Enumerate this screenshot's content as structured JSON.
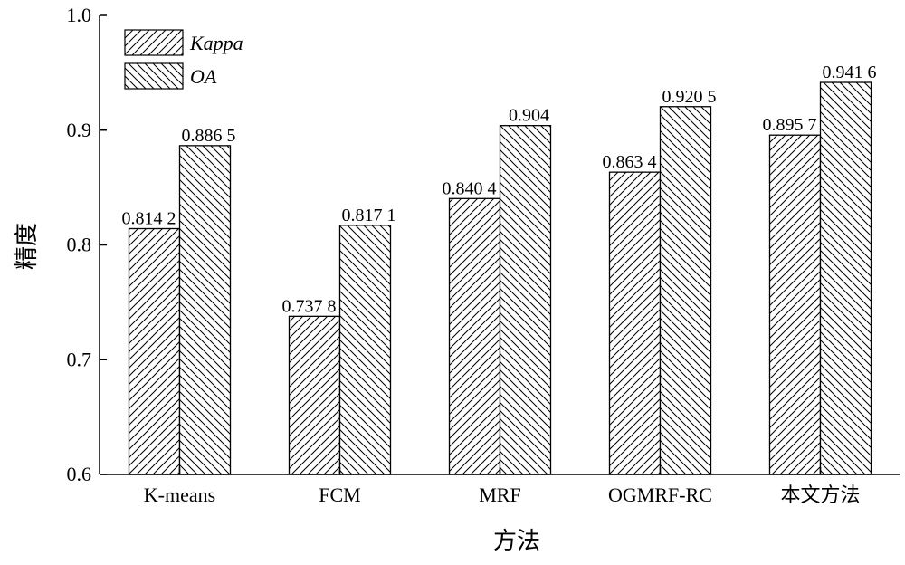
{
  "chart_data": {
    "type": "bar",
    "categories": [
      "K-means",
      "FCM",
      "MRF",
      "OGMRF-RC",
      "本文方法"
    ],
    "series": [
      {
        "name": "Kappa",
        "values": [
          0.8142,
          0.7378,
          0.8404,
          0.8634,
          0.8957
        ],
        "labels": [
          "0.814 2",
          "0.737 8",
          "0.840 4",
          "0.863 4",
          "0.895 7"
        ],
        "pattern": "forward-diagonal-hatch"
      },
      {
        "name": "OA",
        "values": [
          0.8865,
          0.8171,
          0.904,
          0.9205,
          0.9416
        ],
        "labels": [
          "0.886 5",
          "0.817 1",
          "0.904",
          "0.920 5",
          "0.941 6"
        ],
        "pattern": "backward-diagonal-hatch"
      }
    ],
    "xlabel": "方法",
    "ylabel": "精度",
    "ylim": [
      0.6,
      1.0
    ],
    "yticks": [
      "0.6",
      "0.7",
      "0.8",
      "0.9",
      "1.0"
    ],
    "grid": false,
    "legend_position": "top-left",
    "colors": {
      "stroke": "#000000",
      "fill": "#ffffff"
    }
  }
}
